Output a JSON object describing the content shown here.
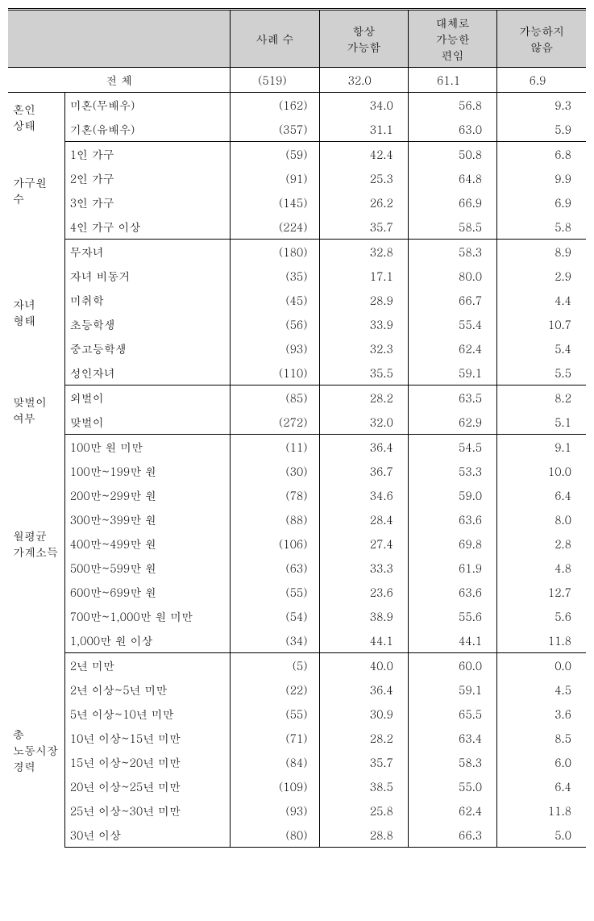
{
  "columns": [
    "사례 수",
    "항상\n가능함",
    "대체로\n가능한\n편임",
    "가능하지\n않음"
  ],
  "total_label": "전 체",
  "total_row": [
    "(519)",
    "32.0",
    "61.1",
    "6.9"
  ],
  "groups": [
    {
      "label": "혼인\n상태",
      "rows": [
        {
          "label": "미혼(무배우)",
          "vals": [
            "(162)",
            "34.0",
            "56.8",
            "9.3"
          ]
        },
        {
          "label": "기혼(유배우)",
          "vals": [
            "(357)",
            "31.1",
            "63.0",
            "5.9"
          ]
        }
      ]
    },
    {
      "label": "가구원\n수",
      "rows": [
        {
          "label": "1인 가구",
          "vals": [
            "(59)",
            "42.4",
            "50.8",
            "6.8"
          ]
        },
        {
          "label": "2인 가구",
          "vals": [
            "(91)",
            "25.3",
            "64.8",
            "9.9"
          ]
        },
        {
          "label": "3인 가구",
          "vals": [
            "(145)",
            "26.2",
            "66.9",
            "6.9"
          ]
        },
        {
          "label": "4인 가구 이상",
          "vals": [
            "(224)",
            "35.7",
            "58.5",
            "5.8"
          ]
        }
      ]
    },
    {
      "label": "자녀\n형태",
      "rows": [
        {
          "label": "무자녀",
          "vals": [
            "(180)",
            "32.8",
            "58.3",
            "8.9"
          ]
        },
        {
          "label": "자녀 비동거",
          "vals": [
            "(35)",
            "17.1",
            "80.0",
            "2.9"
          ]
        },
        {
          "label": "미취학",
          "vals": [
            "(45)",
            "28.9",
            "66.7",
            "4.4"
          ]
        },
        {
          "label": "초등학생",
          "vals": [
            "(56)",
            "33.9",
            "55.4",
            "10.7"
          ]
        },
        {
          "label": "중고등학생",
          "vals": [
            "(93)",
            "32.3",
            "62.4",
            "5.4"
          ]
        },
        {
          "label": "성인자녀",
          "vals": [
            "(110)",
            "35.5",
            "59.1",
            "5.5"
          ]
        }
      ]
    },
    {
      "label": "맞벌이\n여부",
      "rows": [
        {
          "label": "외벌이",
          "vals": [
            "(85)",
            "28.2",
            "63.5",
            "8.2"
          ]
        },
        {
          "label": "맞벌이",
          "vals": [
            "(272)",
            "32.0",
            "62.9",
            "5.1"
          ]
        }
      ]
    },
    {
      "label": "월평균\n가계소득",
      "rows": [
        {
          "label": "100만 원 미만",
          "vals": [
            "(11)",
            "36.4",
            "54.5",
            "9.1"
          ]
        },
        {
          "label": "100만~199만 원",
          "vals": [
            "(30)",
            "36.7",
            "53.3",
            "10.0"
          ]
        },
        {
          "label": "200만~299만 원",
          "vals": [
            "(78)",
            "34.6",
            "59.0",
            "6.4"
          ]
        },
        {
          "label": "300만~399만 원",
          "vals": [
            "(88)",
            "28.4",
            "63.6",
            "8.0"
          ]
        },
        {
          "label": "400만~499만 원",
          "vals": [
            "(106)",
            "27.4",
            "69.8",
            "2.8"
          ]
        },
        {
          "label": "500만~599만 원",
          "vals": [
            "(63)",
            "33.3",
            "61.9",
            "4.8"
          ]
        },
        {
          "label": "600만~699만 원",
          "vals": [
            "(55)",
            "23.6",
            "63.6",
            "12.7"
          ]
        },
        {
          "label": "700만~1,000만 원 미만",
          "vals": [
            "(54)",
            "38.9",
            "55.6",
            "5.6"
          ]
        },
        {
          "label": "1,000만 원 이상",
          "vals": [
            "(34)",
            "44.1",
            "44.1",
            "11.8"
          ]
        }
      ]
    },
    {
      "label": "총\n노동시장\n경력",
      "rows": [
        {
          "label": "2년 미만",
          "vals": [
            "(5)",
            "40.0",
            "60.0",
            "0.0"
          ]
        },
        {
          "label": "2년 이상~5년 미만",
          "vals": [
            "(22)",
            "36.4",
            "59.1",
            "4.5"
          ]
        },
        {
          "label": "5년 이상~10년 미만",
          "vals": [
            "(55)",
            "30.9",
            "65.5",
            "3.6"
          ]
        },
        {
          "label": "10년 이상~15년 미만",
          "vals": [
            "(71)",
            "28.2",
            "63.4",
            "8.5"
          ]
        },
        {
          "label": "15년 이상~20년 미만",
          "vals": [
            "(84)",
            "35.7",
            "58.3",
            "6.0"
          ]
        },
        {
          "label": "20년 이상~25년 미만",
          "vals": [
            "(109)",
            "38.5",
            "55.0",
            "6.4"
          ]
        },
        {
          "label": "25년 이상~30년 미만",
          "vals": [
            "(93)",
            "25.8",
            "62.4",
            "11.8"
          ]
        },
        {
          "label": "30년 이상",
          "vals": [
            "(80)",
            "28.8",
            "66.3",
            "5.0"
          ]
        }
      ]
    }
  ]
}
